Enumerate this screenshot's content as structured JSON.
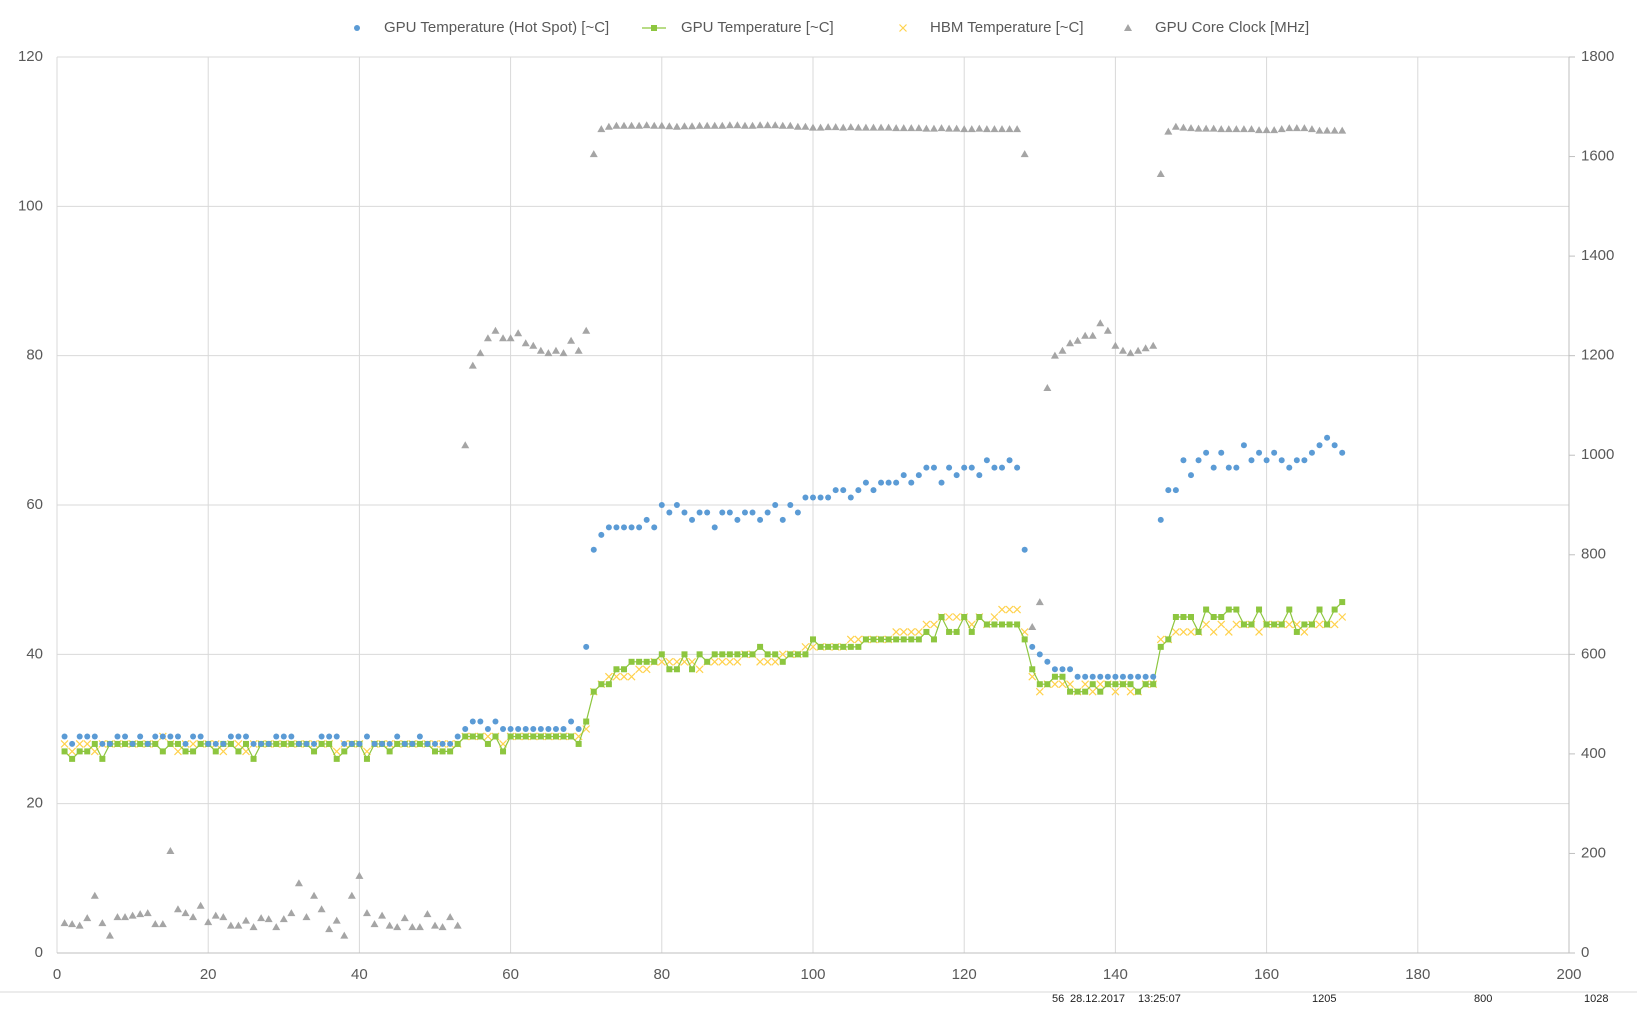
{
  "chart_data": {
    "type": "scatter",
    "x": [
      1,
      2,
      3,
      4,
      5,
      6,
      7,
      8,
      9,
      10,
      11,
      12,
      13,
      14,
      15,
      16,
      17,
      18,
      19,
      20,
      21,
      22,
      23,
      24,
      25,
      26,
      27,
      28,
      29,
      30,
      31,
      32,
      33,
      34,
      35,
      36,
      37,
      38,
      39,
      40,
      41,
      42,
      43,
      44,
      45,
      46,
      47,
      48,
      49,
      50,
      51,
      52,
      53,
      54,
      55,
      56,
      57,
      58,
      59,
      60,
      61,
      62,
      63,
      64,
      65,
      66,
      67,
      68,
      69,
      70,
      71,
      72,
      73,
      74,
      75,
      76,
      77,
      78,
      79,
      80,
      81,
      82,
      83,
      84,
      85,
      86,
      87,
      88,
      89,
      90,
      91,
      92,
      93,
      94,
      95,
      96,
      97,
      98,
      99,
      100,
      101,
      102,
      103,
      104,
      105,
      106,
      107,
      108,
      109,
      110,
      111,
      112,
      113,
      114,
      115,
      116,
      117,
      118,
      119,
      120,
      121,
      122,
      123,
      124,
      125,
      126,
      127,
      128,
      129,
      130,
      131,
      132,
      133,
      134,
      135,
      136,
      137,
      138,
      139,
      140,
      141,
      142,
      143,
      144,
      145,
      146,
      147,
      148,
      149,
      150,
      151,
      152,
      153,
      154,
      155,
      156,
      157,
      158,
      159,
      160,
      161,
      162,
      163,
      164,
      165,
      166,
      167,
      168,
      169,
      170
    ],
    "series": [
      {
        "name": "GPU Temperature (Hot Spot) [~C]",
        "color": "#5b9bd5",
        "marker": "circle",
        "line": false,
        "values": [
          29,
          28,
          29,
          29,
          29,
          28,
          28,
          29,
          29,
          28,
          29,
          28,
          29,
          29,
          29,
          29,
          28,
          29,
          29,
          28,
          28,
          28,
          29,
          29,
          29,
          28,
          28,
          28,
          29,
          29,
          29,
          28,
          28,
          28,
          29,
          29,
          29,
          28,
          28,
          28,
          29,
          28,
          28,
          28,
          29,
          28,
          28,
          29,
          28,
          28,
          28,
          28,
          29,
          30,
          31,
          31,
          30,
          31,
          30,
          30,
          30,
          30,
          30,
          30,
          30,
          30,
          30,
          31,
          30,
          41,
          54,
          56,
          57,
          57,
          57,
          57,
          57,
          58,
          57,
          60,
          59,
          60,
          59,
          58,
          59,
          59,
          57,
          59,
          59,
          58,
          59,
          59,
          58,
          59,
          60,
          58,
          60,
          59,
          61,
          61,
          61,
          61,
          62,
          62,
          61,
          62,
          63,
          62,
          63,
          63,
          63,
          64,
          63,
          64,
          65,
          65,
          63,
          65,
          64,
          65,
          65,
          64,
          66,
          65,
          65,
          66,
          65,
          54,
          41,
          40,
          39,
          38,
          38,
          38,
          37,
          37,
          37,
          37,
          37,
          37,
          37,
          37,
          37,
          37,
          37,
          58,
          62,
          62,
          66,
          64,
          66,
          67,
          65,
          67,
          65,
          65,
          68,
          66,
          67,
          66,
          67,
          66,
          65,
          66,
          66,
          67,
          68,
          69,
          68,
          67
        ]
      },
      {
        "name": "GPU Temperature [~C]",
        "color": "#8dc63f",
        "marker": "square",
        "line": true,
        "values": [
          27,
          26,
          27,
          27,
          28,
          26,
          28,
          28,
          28,
          28,
          28,
          28,
          28,
          27,
          28,
          28,
          27,
          27,
          28,
          28,
          27,
          28,
          28,
          27,
          28,
          26,
          28,
          28,
          28,
          28,
          28,
          28,
          28,
          27,
          28,
          28,
          26,
          27,
          28,
          28,
          26,
          28,
          28,
          27,
          28,
          28,
          28,
          28,
          28,
          27,
          27,
          27,
          28,
          29,
          29,
          29,
          28,
          29,
          27,
          29,
          29,
          29,
          29,
          29,
          29,
          29,
          29,
          29,
          28,
          31,
          35,
          36,
          36,
          38,
          38,
          39,
          39,
          39,
          39,
          40,
          38,
          38,
          40,
          38,
          40,
          39,
          40,
          40,
          40,
          40,
          40,
          40,
          41,
          40,
          40,
          39,
          40,
          40,
          40,
          42,
          41,
          41,
          41,
          41,
          41,
          41,
          42,
          42,
          42,
          42,
          42,
          42,
          42,
          42,
          43,
          42,
          45,
          43,
          43,
          45,
          43,
          45,
          44,
          44,
          44,
          44,
          44,
          42,
          38,
          36,
          36,
          37,
          37,
          35,
          35,
          35,
          36,
          35,
          36,
          36,
          36,
          36,
          35,
          36,
          36,
          41,
          42,
          45,
          45,
          45,
          43,
          46,
          45,
          45,
          46,
          46,
          44,
          44,
          46,
          44,
          44,
          44,
          46,
          43,
          44,
          44,
          46,
          44,
          46,
          47
        ]
      },
      {
        "name": "HBM Temperature [~C]",
        "color": "#ffd24d",
        "marker": "cross",
        "line": false,
        "values": [
          28,
          27,
          28,
          28,
          27,
          28,
          28,
          28,
          28,
          28,
          28,
          28,
          28,
          29,
          28,
          27,
          28,
          28,
          28,
          28,
          28,
          27,
          28,
          28,
          27,
          28,
          28,
          28,
          28,
          28,
          28,
          28,
          28,
          28,
          28,
          28,
          27,
          28,
          28,
          28,
          27,
          28,
          28,
          28,
          28,
          28,
          28,
          28,
          28,
          28,
          28,
          28,
          28,
          29,
          29,
          29,
          29,
          29,
          28,
          29,
          29,
          29,
          29,
          29,
          29,
          29,
          29,
          29,
          29,
          30,
          35,
          36,
          37,
          37,
          37,
          37,
          38,
          38,
          39,
          39,
          39,
          39,
          39,
          39,
          38,
          39,
          39,
          39,
          39,
          39,
          40,
          40,
          39,
          39,
          39,
          40,
          40,
          40,
          41,
          41,
          41,
          41,
          41,
          41,
          42,
          42,
          42,
          42,
          42,
          42,
          43,
          43,
          43,
          43,
          44,
          44,
          45,
          45,
          45,
          45,
          44,
          45,
          44,
          45,
          46,
          46,
          46,
          43,
          37,
          35,
          36,
          36,
          36,
          36,
          35,
          36,
          35,
          36,
          36,
          35,
          36,
          35,
          35,
          36,
          36,
          42,
          42,
          43,
          43,
          43,
          43,
          44,
          43,
          44,
          43,
          44,
          44,
          44,
          43,
          44,
          44,
          44,
          44,
          44,
          43,
          44,
          44,
          44,
          44,
          45
        ]
      },
      {
        "name": "GPU Core Clock [MHz]",
        "color": "#a5a5a5",
        "marker": "triangle",
        "line": false,
        "axis": "y2",
        "values": [
          60,
          58,
          55,
          70,
          115,
          60,
          35,
          72,
          72,
          75,
          78,
          80,
          58,
          58,
          205,
          88,
          80,
          72,
          95,
          62,
          75,
          72,
          55,
          55,
          65,
          52,
          70,
          68,
          52,
          68,
          80,
          140,
          72,
          115,
          88,
          48,
          65,
          35,
          115,
          155,
          80,
          58,
          75,
          55,
          52,
          70,
          52,
          52,
          78,
          55,
          52,
          72,
          55,
          1020,
          1180,
          1205,
          1235,
          1250,
          1235,
          1235,
          1245,
          1225,
          1220,
          1210,
          1205,
          1210,
          1205,
          1230,
          1210,
          1250,
          1605,
          1655,
          1660,
          1662,
          1662,
          1662,
          1662,
          1663,
          1662,
          1662,
          1661,
          1660,
          1661,
          1661,
          1662,
          1662,
          1662,
          1662,
          1663,
          1663,
          1662,
          1662,
          1663,
          1663,
          1663,
          1662,
          1662,
          1660,
          1660,
          1658,
          1658,
          1659,
          1659,
          1658,
          1659,
          1658,
          1658,
          1658,
          1658,
          1658,
          1657,
          1657,
          1657,
          1657,
          1656,
          1656,
          1657,
          1656,
          1656,
          1655,
          1655,
          1656,
          1655,
          1655,
          1655,
          1655,
          1655,
          1605,
          655,
          705,
          1135,
          1200,
          1210,
          1225,
          1230,
          1240,
          1240,
          1265,
          1250,
          1220,
          1210,
          1205,
          1210,
          1215,
          1220,
          1565,
          1650,
          1660,
          1658,
          1657,
          1656,
          1656,
          1656,
          1655,
          1655,
          1655,
          1655,
          1655,
          1653,
          1653,
          1653,
          1655,
          1657,
          1657,
          1657,
          1655,
          1652,
          1652,
          1652,
          1652
        ]
      }
    ],
    "xlim": [
      0,
      200
    ],
    "xticks": [
      0,
      20,
      40,
      60,
      80,
      100,
      120,
      140,
      160,
      180,
      200
    ],
    "ylim": [
      0,
      120
    ],
    "yticks": [
      0,
      20,
      40,
      60,
      80,
      100,
      120
    ],
    "y2lim": [
      0,
      1800
    ],
    "y2ticks": [
      0,
      200,
      400,
      600,
      800,
      1000,
      1200,
      1400,
      1600,
      1800
    ],
    "grid": true,
    "legend": "top"
  },
  "sheet_cells": [
    "56",
    "28.12.2017",
    "13:25:07",
    "1205",
    "800",
    "1028"
  ]
}
